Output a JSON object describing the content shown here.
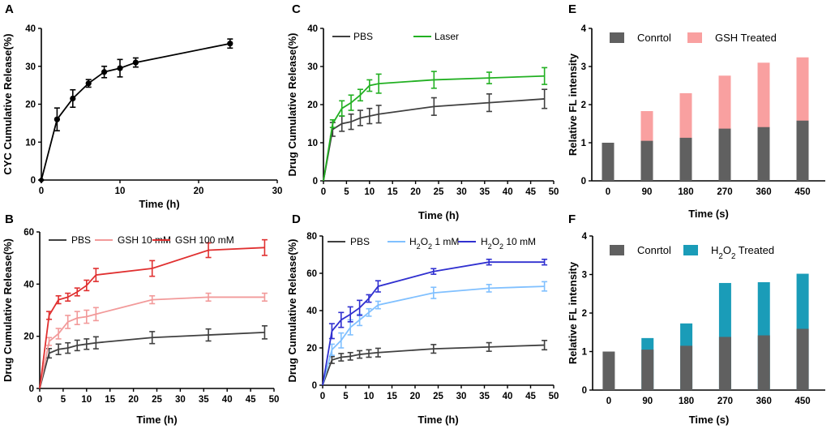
{
  "chart_data": [
    {
      "id": "A",
      "panel_letter": "A",
      "type": "line",
      "xlabel": "Time (h)",
      "ylabel": "CYC Cumulative Release(%)",
      "xlim": [
        0,
        30
      ],
      "ylim": [
        0,
        40
      ],
      "xticks": [
        0,
        10,
        20,
        30
      ],
      "yticks": [
        0,
        10,
        20,
        30,
        40
      ],
      "series": [
        {
          "name": "CYC",
          "color": "#000000",
          "x": [
            0,
            2,
            4,
            6,
            8,
            10,
            12,
            24
          ],
          "y": [
            0,
            16,
            21.5,
            25.5,
            28.5,
            29.5,
            31,
            36
          ],
          "err": [
            0,
            3,
            2.3,
            1,
            1.5,
            2.3,
            1.2,
            1.2
          ]
        }
      ]
    },
    {
      "id": "B",
      "panel_letter": "B",
      "type": "line",
      "xlabel": "Time (h)",
      "ylabel": "Drug Cumulative Release(%)",
      "xlim": [
        0,
        50
      ],
      "ylim": [
        0,
        60
      ],
      "xticks": [
        0,
        5,
        10,
        15,
        20,
        25,
        30,
        35,
        40,
        45,
        50
      ],
      "yticks": [
        0,
        20,
        40,
        60
      ],
      "legend": [
        "PBS",
        "GSH 10 mM",
        "GSH 100 mM"
      ],
      "series": [
        {
          "name": "PBS",
          "color": "#404040",
          "x": [
            0,
            2,
            4,
            6,
            8,
            10,
            12,
            24,
            36,
            48
          ],
          "y": [
            0,
            13.5,
            15,
            15.5,
            16.5,
            17,
            17.5,
            19.5,
            20.5,
            21.5
          ],
          "err": [
            0,
            1.8,
            2,
            2,
            2,
            2,
            2.3,
            2.3,
            2.3,
            2.5
          ]
        },
        {
          "name": "GSH 10 mM",
          "color": "#f29a9a",
          "x": [
            0,
            2,
            4,
            6,
            8,
            10,
            12,
            24,
            36,
            48
          ],
          "y": [
            0,
            18,
            21,
            25.5,
            27,
            27.5,
            28.5,
            34,
            35,
            35
          ],
          "err": [
            0,
            1.5,
            2,
            2.5,
            2.5,
            2.5,
            2.5,
            1.5,
            1.5,
            1.5
          ]
        },
        {
          "name": "GSH 100 mM",
          "color": "#e03030",
          "x": [
            0,
            2,
            4,
            6,
            8,
            10,
            12,
            24,
            36,
            48
          ],
          "y": [
            0,
            28,
            34,
            35,
            37,
            39.5,
            43.5,
            46,
            53,
            54
          ],
          "err": [
            0,
            1.5,
            1.5,
            1.5,
            1.5,
            2,
            2.5,
            3,
            2.8,
            3
          ]
        }
      ]
    },
    {
      "id": "C",
      "panel_letter": "C",
      "type": "line",
      "xlabel": "Time (h)",
      "ylabel": "Drug Cumulative Release(%)",
      "xlim": [
        0,
        50
      ],
      "ylim": [
        0,
        40
      ],
      "xticks": [
        0,
        5,
        10,
        15,
        20,
        25,
        30,
        35,
        40,
        45,
        50
      ],
      "yticks": [
        0,
        10,
        20,
        30,
        40
      ],
      "legend": [
        "PBS",
        "Laser"
      ],
      "series": [
        {
          "name": "PBS",
          "color": "#404040",
          "x": [
            0,
            2,
            4,
            6,
            8,
            10,
            12,
            24,
            36,
            48
          ],
          "y": [
            0,
            13.5,
            15,
            15.5,
            16.5,
            17,
            17.5,
            19.5,
            20.5,
            21.5
          ],
          "err": [
            0,
            1.8,
            2,
            2,
            2,
            2,
            2.3,
            2.3,
            2.3,
            2.5
          ]
        },
        {
          "name": "Laser",
          "color": "#22b022",
          "x": [
            0,
            2,
            4,
            6,
            8,
            10,
            12,
            24,
            36,
            48
          ],
          "y": [
            0,
            15,
            19,
            20.5,
            22.5,
            25,
            25.5,
            26.5,
            27,
            27.5
          ],
          "err": [
            0,
            1,
            2,
            2,
            1.5,
            1.5,
            2.5,
            2.2,
            1.5,
            2.2
          ]
        }
      ]
    },
    {
      "id": "D",
      "panel_letter": "D",
      "type": "line",
      "xlabel": "Time (h)",
      "ylabel": "Drug Cumulative Release(%)",
      "xlim": [
        0,
        50
      ],
      "ylim": [
        0,
        80
      ],
      "xticks": [
        0,
        5,
        10,
        15,
        20,
        25,
        30,
        35,
        40,
        45,
        50
      ],
      "yticks": [
        0,
        20,
        40,
        60,
        80
      ],
      "legend": [
        "PBS",
        "H2O2 1 mM",
        "H2O2 10 mM"
      ],
      "series": [
        {
          "name": "PBS",
          "color": "#404040",
          "x": [
            0,
            2,
            4,
            6,
            8,
            10,
            12,
            24,
            36,
            48
          ],
          "y": [
            0,
            13.5,
            15,
            15.5,
            16.5,
            17,
            17.5,
            19.5,
            20.5,
            21.5
          ],
          "err": [
            0,
            1.8,
            2,
            2,
            2,
            2,
            2.3,
            2.3,
            2.3,
            2.5
          ]
        },
        {
          "name": "H2O2 1 mM",
          "color": "#80c0ff",
          "x": [
            0,
            2,
            4,
            6,
            8,
            10,
            12,
            24,
            36,
            48
          ],
          "y": [
            0,
            19,
            24,
            31,
            35,
            39,
            43,
            49.5,
            52,
            53
          ],
          "err": [
            0,
            3,
            4,
            4,
            3,
            2,
            2,
            3,
            2,
            2.5
          ]
        },
        {
          "name": "H2O2 10 mM",
          "color": "#3030d0",
          "x": [
            0,
            2,
            4,
            6,
            8,
            10,
            12,
            24,
            36,
            48
          ],
          "y": [
            0,
            29,
            35,
            38,
            41.5,
            46.5,
            53,
            61,
            66,
            66
          ],
          "err": [
            0,
            4,
            4,
            4,
            4,
            2,
            3,
            1.5,
            1.5,
            1.5
          ]
        }
      ]
    },
    {
      "id": "E",
      "panel_letter": "E",
      "type": "bar",
      "xlabel": "Time (s)",
      "ylabel": "Relative FL intensity",
      "categories": [
        "0",
        "90",
        "180",
        "270",
        "360",
        "450"
      ],
      "ylim": [
        0,
        4
      ],
      "yticks": [
        0,
        1,
        2,
        3,
        4
      ],
      "legend": [
        "Conrtol",
        "GSH Treated"
      ],
      "series": [
        {
          "name": "Conrtol",
          "color": "#606060",
          "values": [
            1,
            1.05,
            1.13,
            1.37,
            1.41,
            1.58
          ]
        },
        {
          "name": "GSH Treated",
          "color": "#f9a0a0",
          "values": [
            0,
            1.83,
            2.3,
            2.76,
            3.1,
            3.24
          ]
        }
      ]
    },
    {
      "id": "F",
      "panel_letter": "F",
      "type": "bar",
      "xlabel": "Time (s)",
      "ylabel": "Relative FL intensity",
      "categories": [
        "0",
        "90",
        "180",
        "270",
        "360",
        "450"
      ],
      "ylim": [
        0,
        4
      ],
      "yticks": [
        0,
        1,
        2,
        3,
        4
      ],
      "legend": [
        "Conrtol",
        "H2O2 Treated"
      ],
      "series": [
        {
          "name": "Conrtol",
          "color": "#606060",
          "values": [
            1,
            1.05,
            1.15,
            1.38,
            1.42,
            1.59
          ]
        },
        {
          "name": "H2O2 Treated",
          "color": "#1a9cb8",
          "values": [
            0,
            1.35,
            1.73,
            2.78,
            2.8,
            3.02
          ]
        }
      ]
    }
  ]
}
